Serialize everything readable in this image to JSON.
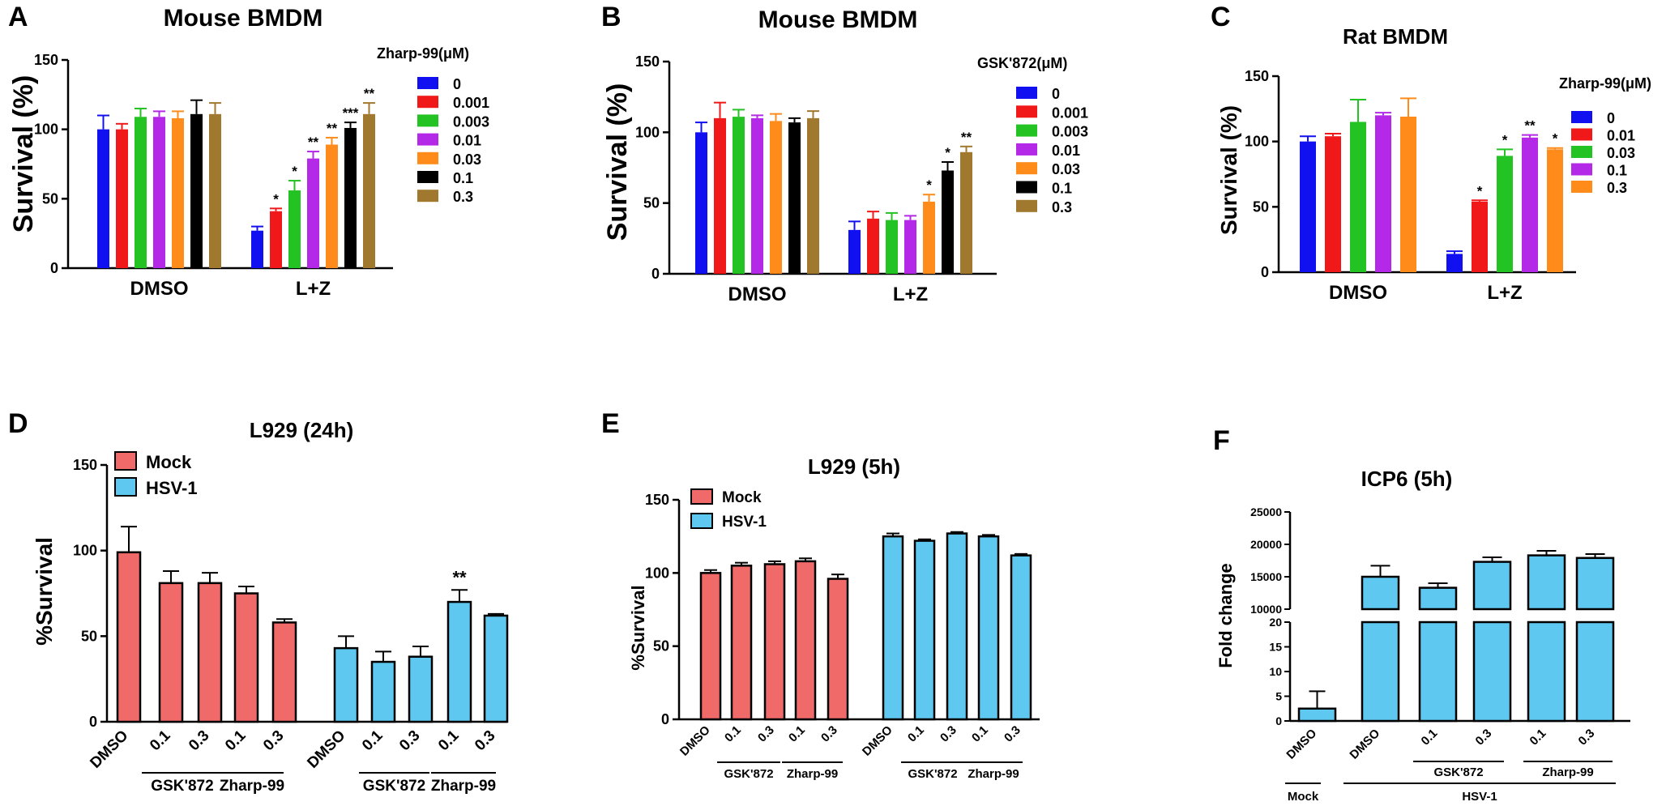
{
  "panels": {
    "A": {
      "label": "A",
      "title": "Mouse BMDM"
    },
    "B": {
      "label": "B",
      "title": "Mouse BMDM"
    },
    "C": {
      "label": "C",
      "title": "Rat BMDM"
    },
    "D": {
      "label": "D",
      "title": "L929 (24h)"
    },
    "E": {
      "label": "E",
      "title": "L929 (5h)"
    },
    "F": {
      "label": "F",
      "title": "ICP6 (5h)"
    }
  },
  "colors": {
    "blue": "#1010f0",
    "red": "#f01818",
    "green": "#22c322",
    "purple": "#b429e8",
    "orange": "#ff8c1a",
    "black": "#000000",
    "brown": "#a0782e",
    "mock": "#f06a6a",
    "hsv": "#5ec8f0"
  },
  "chart_data": [
    {
      "id": "A",
      "type": "bar",
      "title": "Mouse BMDM",
      "ylabel": "Survival (%)",
      "ylim": [
        0,
        150
      ],
      "yticks": [
        "0",
        "50",
        "100",
        "150"
      ],
      "categories": [
        "DMSO",
        "L+Z"
      ],
      "legend_title": "Zharp-99(μM)",
      "series": [
        {
          "name": "0",
          "color": "#1010f0",
          "values": [
            100,
            27
          ],
          "errors": [
            10,
            3
          ],
          "sig": [
            "",
            ""
          ]
        },
        {
          "name": "0.001",
          "color": "#f01818",
          "values": [
            100,
            41
          ],
          "errors": [
            4,
            2
          ],
          "sig": [
            "",
            "*"
          ]
        },
        {
          "name": "0.003",
          "color": "#22c322",
          "values": [
            109,
            56
          ],
          "errors": [
            6,
            7
          ],
          "sig": [
            "",
            "*"
          ]
        },
        {
          "name": "0.01",
          "color": "#b429e8",
          "values": [
            109,
            79
          ],
          "errors": [
            4,
            5
          ],
          "sig": [
            "",
            "**"
          ]
        },
        {
          "name": "0.03",
          "color": "#ff8c1a",
          "values": [
            108,
            89
          ],
          "errors": [
            5,
            5
          ],
          "sig": [
            "",
            "**"
          ]
        },
        {
          "name": "0.1",
          "color": "#000000",
          "values": [
            111,
            101
          ],
          "errors": [
            10,
            4
          ],
          "sig": [
            "",
            "***"
          ]
        },
        {
          "name": "0.3",
          "color": "#a0782e",
          "values": [
            111,
            111
          ],
          "errors": [
            8,
            8
          ],
          "sig": [
            "",
            "**"
          ]
        }
      ]
    },
    {
      "id": "B",
      "type": "bar",
      "title": "Mouse BMDM",
      "ylabel": "Survival (%)",
      "ylim": [
        0,
        150
      ],
      "yticks": [
        "0",
        "50",
        "100",
        "150"
      ],
      "categories": [
        "DMSO",
        "L+Z"
      ],
      "legend_title": "GSK'872(μM)",
      "series": [
        {
          "name": "0",
          "color": "#1010f0",
          "values": [
            100,
            31
          ],
          "errors": [
            7,
            6
          ],
          "sig": [
            "",
            ""
          ]
        },
        {
          "name": "0.001",
          "color": "#f01818",
          "values": [
            110,
            39
          ],
          "errors": [
            11,
            5
          ],
          "sig": [
            "",
            ""
          ]
        },
        {
          "name": "0.003",
          "color": "#22c322",
          "values": [
            111,
            38
          ],
          "errors": [
            5,
            5
          ],
          "sig": [
            "",
            ""
          ]
        },
        {
          "name": "0.01",
          "color": "#b429e8",
          "values": [
            110,
            38
          ],
          "errors": [
            2,
            3
          ],
          "sig": [
            "",
            ""
          ]
        },
        {
          "name": "0.03",
          "color": "#ff8c1a",
          "values": [
            108,
            51
          ],
          "errors": [
            5,
            5
          ],
          "sig": [
            "",
            "*"
          ]
        },
        {
          "name": "0.1",
          "color": "#000000",
          "values": [
            107,
            73
          ],
          "errors": [
            3,
            6
          ],
          "sig": [
            "",
            "*"
          ]
        },
        {
          "name": "0.3",
          "color": "#a0782e",
          "values": [
            110,
            86
          ],
          "errors": [
            5,
            4
          ],
          "sig": [
            "",
            "**"
          ]
        }
      ]
    },
    {
      "id": "C",
      "type": "bar",
      "title": "Rat BMDM",
      "ylabel": "Survival (%)",
      "ylim": [
        0,
        150
      ],
      "yticks": [
        "0",
        "50",
        "100",
        "150"
      ],
      "categories": [
        "DMSO",
        "L+Z"
      ],
      "legend_title": "Zharp-99(μM)",
      "series": [
        {
          "name": "0",
          "color": "#1010f0",
          "values": [
            100,
            14
          ],
          "errors": [
            4,
            2
          ],
          "sig": [
            "",
            ""
          ]
        },
        {
          "name": "0.01",
          "color": "#f01818",
          "values": [
            104,
            54
          ],
          "errors": [
            2,
            1
          ],
          "sig": [
            "",
            "*"
          ]
        },
        {
          "name": "0.03",
          "color": "#22c322",
          "values": [
            115,
            89
          ],
          "errors": [
            17,
            5
          ],
          "sig": [
            "",
            "*"
          ]
        },
        {
          "name": "0.1",
          "color": "#b429e8",
          "values": [
            120,
            103
          ],
          "errors": [
            2,
            2
          ],
          "sig": [
            "",
            "**"
          ]
        },
        {
          "name": "0.3",
          "color": "#ff8c1a",
          "values": [
            119,
            94
          ],
          "errors": [
            14,
            1
          ],
          "sig": [
            "",
            "*"
          ]
        }
      ]
    },
    {
      "id": "D",
      "type": "bar",
      "title": "L929 (24h)",
      "ylabel": "%Survival",
      "ylim": [
        0,
        150
      ],
      "yticks": [
        "0",
        "50",
        "100",
        "150"
      ],
      "legend": [
        "Mock",
        "HSV-1"
      ],
      "categories": [
        "DMSO",
        "0.1",
        "0.3",
        "0.1",
        "0.3",
        "DMSO",
        "0.1",
        "0.3",
        "0.1",
        "0.3"
      ],
      "groups": [
        "GSK'872",
        "Zharp-99",
        "GSK'872",
        "Zharp-99"
      ],
      "values": [
        99,
        81,
        81,
        75,
        58,
        43,
        35,
        38,
        70,
        62
      ],
      "errors": [
        15,
        7,
        6,
        4,
        2,
        7,
        6,
        6,
        7,
        1
      ],
      "series_of_bar": [
        "Mock",
        "Mock",
        "Mock",
        "Mock",
        "Mock",
        "HSV-1",
        "HSV-1",
        "HSV-1",
        "HSV-1",
        "HSV-1"
      ],
      "sig": [
        "",
        "",
        "",
        "",
        "",
        "",
        "",
        "",
        "**",
        ""
      ]
    },
    {
      "id": "E",
      "type": "bar",
      "title": "L929 (5h)",
      "ylabel": "%Survival",
      "ylim": [
        0,
        150
      ],
      "yticks": [
        "0",
        "50",
        "100",
        "150"
      ],
      "legend": [
        "Mock",
        "HSV-1"
      ],
      "categories": [
        "DMSO",
        "0.1",
        "0.3",
        "0.1",
        "0.3",
        "DMSO",
        "0.1",
        "0.3",
        "0.1",
        "0.3"
      ],
      "groups": [
        "GSK'872",
        "Zharp-99",
        "GSK'872",
        "Zharp-99"
      ],
      "values": [
        100,
        105,
        106,
        108,
        96,
        125,
        122,
        127,
        125,
        112
      ],
      "errors": [
        2,
        2,
        2,
        2,
        3,
        2,
        1,
        1,
        1,
        1
      ],
      "series_of_bar": [
        "Mock",
        "Mock",
        "Mock",
        "Mock",
        "Mock",
        "HSV-1",
        "HSV-1",
        "HSV-1",
        "HSV-1",
        "HSV-1"
      ]
    },
    {
      "id": "F",
      "type": "bar",
      "title": "ICP6 (5h)",
      "ylabel": "Fold change",
      "ylim_lower": [
        0,
        20
      ],
      "ylim_upper": [
        10000,
        25000
      ],
      "yticks_lower": [
        "0",
        "5",
        "10",
        "15",
        "20"
      ],
      "yticks_upper": [
        "10000",
        "15000",
        "20000",
        "25000"
      ],
      "categories": [
        "DMSO",
        "DMSO",
        "0.1",
        "0.3",
        "0.1",
        "0.3"
      ],
      "groups": [
        "GSK'872",
        "Zharp-99"
      ],
      "condition_labels": [
        "Mock",
        "HSV-1"
      ],
      "values": [
        2.5,
        15000,
        13300,
        17300,
        18300,
        17900
      ],
      "errors": [
        3.5,
        1700,
        700,
        700,
        700,
        600
      ]
    }
  ]
}
